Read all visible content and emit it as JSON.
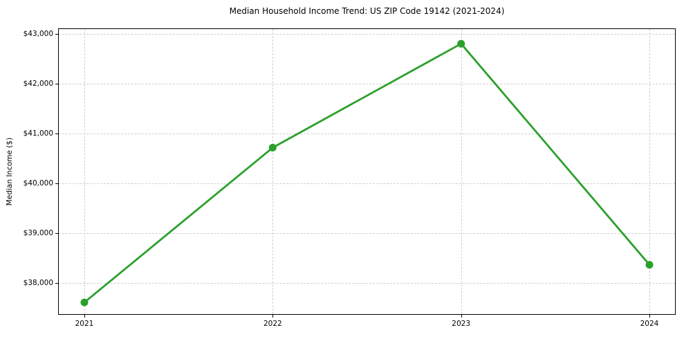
{
  "chart_data": {
    "type": "line",
    "title": "Median Household Income Trend: US ZIP Code 19142 (2021-2024)",
    "xlabel": "",
    "ylabel": "Median Income ($)",
    "categories": [
      "2021",
      "2022",
      "2023",
      "2024"
    ],
    "values": [
      37615,
      40720,
      42805,
      38370
    ],
    "y_ticks": [
      38000,
      39000,
      40000,
      41000,
      42000,
      43000
    ],
    "y_tick_labels": [
      "$38,000",
      "$39,000",
      "$40,000",
      "$41,000",
      "$42,000",
      "$43,000"
    ],
    "ylim": [
      37380,
      43100
    ],
    "grid": "dashed",
    "legend": "none",
    "colors": {
      "line": "#2ca02c",
      "marker": "#2ca02c",
      "grid": "#cfcfcf",
      "spine": "#000000",
      "text": "#000000",
      "background": "#ffffff"
    }
  }
}
